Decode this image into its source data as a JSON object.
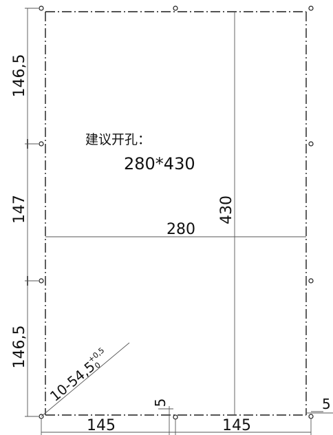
{
  "note": {
    "label": "建议开孔：",
    "value": "280*430"
  },
  "dimensions": {
    "left_top": "146,5",
    "left_middle": "147",
    "left_bottom": "146,5",
    "bottom_left": "145",
    "bottom_right": "145",
    "bottom_gap": "5",
    "right_gap": "5",
    "cutout_width": "280",
    "cutout_height": "430",
    "hole_callout": "10-54,5",
    "hole_tol_upper": "+0,5",
    "hole_tol_lower": "0"
  },
  "colors": {
    "line": "#1a1a1a",
    "dim_line": "#555555"
  }
}
